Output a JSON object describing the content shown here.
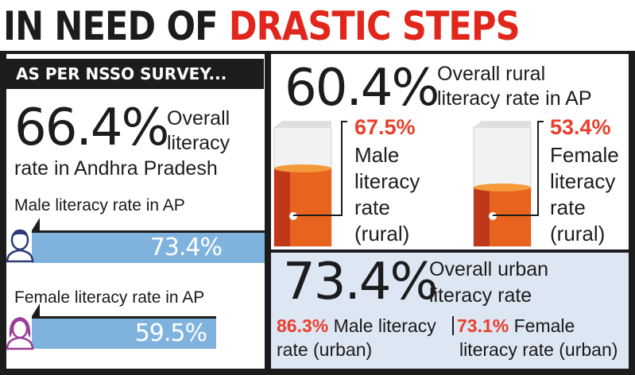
{
  "headline": {
    "part1": "IN NEED OF",
    "part2": "DRASTIC STEPS"
  },
  "survey_tag": "AS PER NSSO SURVEY...",
  "overall": {
    "value": "66.4%",
    "label_line1": "Overall",
    "label_line2": "literacy",
    "label_line3": "rate in Andhra Pradesh"
  },
  "male_ap": {
    "label": "Male literacy rate in AP",
    "value": "73.4%",
    "fraction": 0.734
  },
  "female_ap": {
    "label": "Female literacy rate in AP",
    "value": "59.5%",
    "fraction": 0.595
  },
  "rural": {
    "value": "60.4%",
    "label_line1": "Overall rural",
    "label_line2": "literacy rate in AP",
    "male": {
      "value": "67.5%",
      "fill": 0.675,
      "line1": "Male",
      "line2": "literacy",
      "line3": "rate",
      "line4": "(rural)"
    },
    "female": {
      "value": "53.4%",
      "fill": 0.534,
      "line1": "Female",
      "line2": "literacy",
      "line3": "rate",
      "line4": "(rural)"
    }
  },
  "urban": {
    "value": "73.4%",
    "label_line1": "Overall urban",
    "label_line2": "literacy rate",
    "male": {
      "value": "86.3%",
      "text1": "Male literacy",
      "text2": "rate (urban)"
    },
    "female": {
      "value": "73.1%",
      "text1": "Female",
      "text2": "literacy rate (urban)"
    }
  },
  "colors": {
    "red": "#e1261c",
    "orange": "#e8402c",
    "bar": "#7fb3de",
    "urban_bg": "#dde6f3",
    "purple": "#9b3d96",
    "navy": "#2e3a78"
  }
}
